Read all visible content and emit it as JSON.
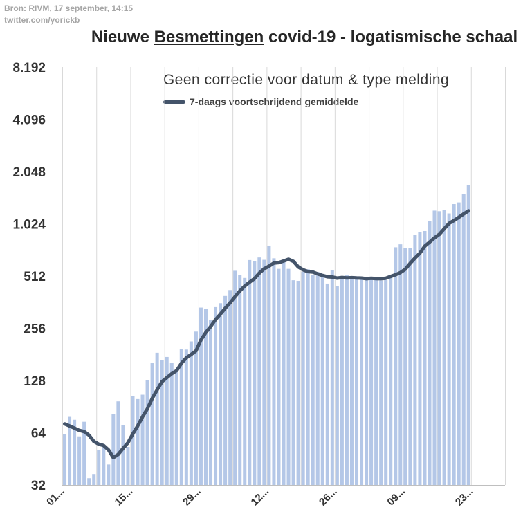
{
  "source_line1": "Bron: RIVM, 17 september, 14:15",
  "source_line2": "twitter.com/yorickb",
  "title_part1": "Nieuwe ",
  "title_underlined": "Besmettingen",
  "title_part2": " covid-19 - logatismische schaal",
  "subtitle": "Geen correctie voor datum & type melding",
  "legend_label": "7-daags voortschrijdend gemiddelde",
  "colors": {
    "bar": "#b4c7e7",
    "line": "#44546a",
    "grid": "#d9d9d9"
  },
  "chart_data": {
    "type": "bar",
    "yscale": "log2",
    "ylim": [
      32,
      8192
    ],
    "yticks": [
      "32",
      "64",
      "128",
      "256",
      "512",
      "1.024",
      "2.048",
      "4.096",
      "8.192"
    ],
    "ytick_values": [
      32,
      64,
      128,
      256,
      512,
      1024,
      2048,
      4096,
      8192
    ],
    "xticks": [
      "01...",
      "15...",
      "29...",
      "12...",
      "26...",
      "09...",
      "23..."
    ],
    "xtick_day_index": [
      0,
      14,
      28,
      42,
      56,
      70,
      84
    ],
    "x_domain_days": 91,
    "values": [
      63,
      79,
      76,
      61,
      74,
      35,
      37,
      51,
      53,
      42,
      82,
      97,
      71,
      53,
      104,
      100,
      106,
      128,
      161,
      185,
      168,
      175,
      161,
      145,
      195,
      193,
      215,
      245,
      337,
      332,
      286,
      339,
      357,
      393,
      425,
      549,
      517,
      499,
      633,
      621,
      655,
      635,
      767,
      648,
      563,
      620,
      563,
      484,
      480,
      541,
      560,
      520,
      540,
      504,
      463,
      553,
      447,
      509,
      519,
      499,
      505,
      493,
      489,
      499,
      489,
      482,
      485,
      512,
      750,
      780,
      744,
      745,
      884,
      920,
      930,
      1065,
      1220,
      1210,
      1235,
      1175,
      1330,
      1360,
      1520,
      1718
    ],
    "series": [
      {
        "name": "7-daags voortschrijdend gemiddelde",
        "values": [
          72,
          70,
          68,
          66,
          65,
          62,
          57,
          55,
          54,
          51,
          46,
          48,
          52,
          56,
          63,
          70,
          79,
          88,
          101,
          113,
          126,
          133,
          140,
          146,
          161,
          173,
          181,
          190,
          219,
          242,
          262,
          287,
          309,
          334,
          359,
          389,
          420,
          448,
          472,
          495,
          532,
          564,
          584,
          608,
          612,
          625,
          640,
          622,
          578,
          556,
          543,
          540,
          527,
          516,
          507,
          505,
          498,
          502,
          499,
          501,
          499,
          498,
          494,
          497,
          495,
          494,
          497,
          509,
          521,
          536,
          560,
          606,
          650,
          693,
          761,
          803,
          850,
          891,
          959,
          1030,
          1070,
          1116,
          1168,
          1216
        ]
      }
    ]
  }
}
